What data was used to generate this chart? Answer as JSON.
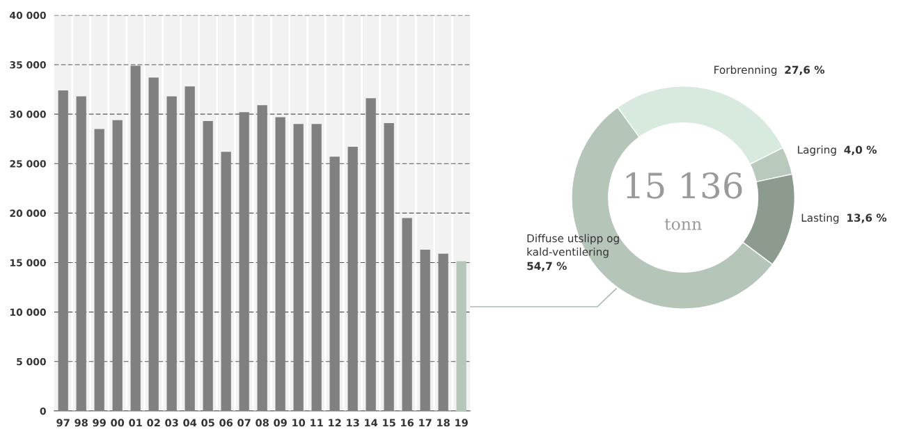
{
  "chart_data": [
    {
      "type": "bar",
      "categories": [
        "97",
        "98",
        "99",
        "00",
        "01",
        "02",
        "03",
        "04",
        "05",
        "06",
        "07",
        "08",
        "09",
        "10",
        "11",
        "12",
        "13",
        "14",
        "15",
        "16",
        "17",
        "18",
        "19"
      ],
      "values": [
        32400,
        31800,
        28500,
        29400,
        34900,
        33700,
        31800,
        32800,
        29300,
        26200,
        30200,
        30900,
        29700,
        29000,
        29000,
        25700,
        26700,
        31600,
        29100,
        19500,
        16300,
        15900,
        15136
      ],
      "colors": [
        "#808080",
        "#808080",
        "#808080",
        "#808080",
        "#808080",
        "#808080",
        "#808080",
        "#808080",
        "#808080",
        "#808080",
        "#808080",
        "#808080",
        "#808080",
        "#808080",
        "#808080",
        "#808080",
        "#808080",
        "#808080",
        "#808080",
        "#808080",
        "#808080",
        "#808080",
        "#b5c7b9"
      ],
      "ylim": [
        0,
        40000
      ],
      "yticks": [
        {
          "value": 0,
          "label": "0"
        },
        {
          "value": 5000,
          "label": "5 000"
        },
        {
          "value": 10000,
          "label": "10 000"
        },
        {
          "value": 15000,
          "label": "15 000"
        },
        {
          "value": 20000,
          "label": "20 000"
        },
        {
          "value": 25000,
          "label": "25 000"
        },
        {
          "value": 30000,
          "label": "30 000"
        },
        {
          "value": 35000,
          "label": "35 000"
        },
        {
          "value": 40000,
          "label": "40 000"
        }
      ],
      "grid": "y"
    },
    {
      "type": "donut",
      "categories": [
        "Forbrenning",
        "Lagring",
        "Lasting",
        "Diffuse utslipp og\nkald-ventilering"
      ],
      "values": [
        27.6,
        4.0,
        13.6,
        54.7
      ],
      "value_labels": [
        "27,6 %",
        "4,0 %",
        "13,6 %",
        "54,7 %"
      ],
      "colors": [
        "#d8eadd",
        "#b9cabd",
        "#8d9a8e",
        "#b5c5b8"
      ],
      "annotations": [
        "15 136",
        "tonn"
      ]
    }
  ]
}
